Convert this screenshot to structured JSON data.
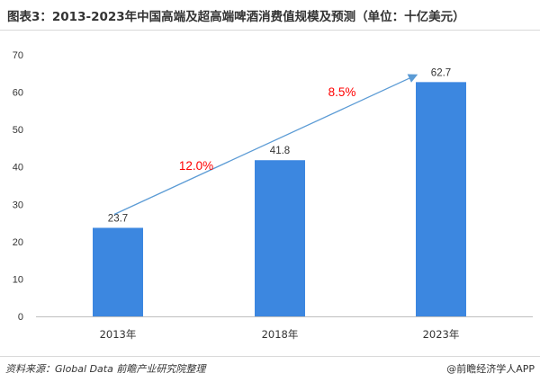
{
  "title": "图表3：2013-2023年中国高端及超高端啤酒消费值规模及预测（单位：十亿美元）",
  "source": "资料来源：Global Data 前瞻产业研究院整理",
  "brand": "@前瞻经济学人APP",
  "chart_data": {
    "type": "bar",
    "categories": [
      "2013年",
      "2018年",
      "2023年"
    ],
    "values": [
      23.7,
      41.8,
      62.7
    ],
    "value_labels": [
      "23.7",
      "41.8",
      "62.7"
    ],
    "ylim": [
      0,
      70
    ],
    "yticks": [
      0,
      10,
      20,
      30,
      40,
      50,
      60,
      70
    ],
    "bar_color": "#3c87e0",
    "trend_color": "#5b9bd5",
    "growth_labels": [
      {
        "text": "12.0%",
        "between": [
          0,
          1
        ]
      },
      {
        "text": "8.5%",
        "between": [
          1,
          2
        ]
      }
    ],
    "growth_color": "#ff0000",
    "grid": false
  }
}
